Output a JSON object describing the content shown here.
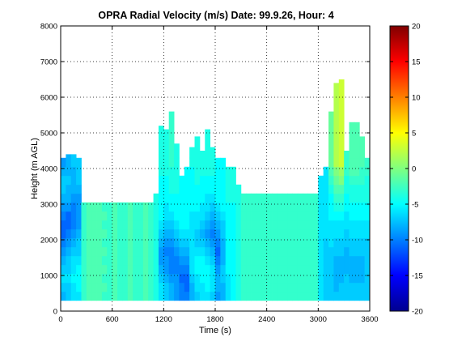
{
  "chart_data": {
    "type": "heatmap",
    "title": "OPRA Radial Velocity (m/s)  Date: 99.9.26, Hour: 4",
    "xlabel": "Time (s)",
    "ylabel": "Height (m AGL)",
    "xlim": [
      0,
      3600
    ],
    "ylim": [
      0,
      8000
    ],
    "xticks": [
      0,
      600,
      1200,
      1800,
      2400,
      3000,
      3600
    ],
    "yticks": [
      0,
      1000,
      2000,
      3000,
      4000,
      5000,
      6000,
      7000,
      8000
    ],
    "grid": true,
    "colorbar": {
      "min": -20,
      "max": 20,
      "ticks": [
        -20,
        -15,
        -10,
        -5,
        0,
        5,
        10,
        15,
        20
      ],
      "colormap": "jet"
    },
    "time_bin_s": 60,
    "height_bin_m": 250,
    "echo_tops_m": [
      4100,
      4400,
      4400,
      4100,
      2700,
      2700,
      2700,
      2700,
      2700,
      2700,
      2700,
      2700,
      2700,
      2700,
      2700,
      2700,
      2700,
      2700,
      3000,
      5200,
      5100,
      5600,
      4700,
      3400,
      3700,
      4600,
      4900,
      4500,
      5100,
      4600,
      3900,
      3700,
      3400,
      3400,
      3300,
      2900,
      2900,
      2900,
      2900,
      2900,
      2900,
      2900,
      2900,
      2900,
      2900,
      2900,
      2900,
      2900,
      2900,
      2900,
      3400,
      3800,
      5600,
      6400,
      6500,
      4500,
      5300,
      5300,
      4900,
      4200
    ],
    "velocity_m_s": [
      [
        -8,
        -7,
        -6,
        -7,
        -8,
        -9,
        -10,
        -11,
        -11,
        -10,
        -9,
        -8,
        -7,
        -7,
        -8,
        -9
      ],
      [
        -7,
        -7,
        -6,
        -7,
        -7,
        -8,
        -9,
        -10,
        -11,
        -11,
        -9,
        -8,
        -8,
        -7,
        -8,
        -8
      ],
      [
        -6,
        -6,
        -5,
        -6,
        -6,
        -7,
        -8,
        -9,
        -10,
        -10,
        -10,
        -9,
        -8,
        -8,
        -8,
        -7
      ],
      [
        -6,
        -5,
        -5,
        -5,
        -6,
        -7,
        -7,
        -8,
        -9,
        -9,
        -9,
        -9,
        -8,
        -7,
        -7,
        -7
      ],
      [
        -3,
        -3,
        -3,
        -3,
        -3,
        -3,
        -3,
        -3,
        -3,
        -3,
        -3,
        null,
        null,
        null,
        null,
        null
      ],
      [
        -2,
        -2,
        -2,
        -2,
        -2,
        -2,
        -2,
        -2,
        -2,
        -2,
        -2,
        null,
        null,
        null,
        null,
        null
      ],
      [
        -2,
        -2,
        -2,
        -2,
        -2,
        -2,
        -2,
        -2,
        -2,
        -2,
        -2,
        null,
        null,
        null,
        null,
        null
      ],
      [
        -2,
        -2,
        -2,
        -2,
        -2,
        -2,
        -2,
        -2,
        -2,
        -2,
        -2,
        null,
        null,
        null,
        null,
        null
      ],
      [
        -3,
        -2,
        -3,
        -2,
        -3,
        -2,
        -3,
        -2,
        -3,
        -2,
        -3,
        null,
        null,
        null,
        null,
        null
      ],
      [
        -3,
        -3,
        -3,
        -3,
        -3,
        -3,
        -3,
        -3,
        -3,
        -3,
        -3,
        null,
        null,
        null,
        null,
        null
      ],
      [
        -2,
        -2,
        -2,
        -2,
        -2,
        -2,
        -2,
        -2,
        -2,
        -2,
        -2,
        null,
        null,
        null,
        null,
        null
      ],
      [
        -3,
        -3,
        -3,
        -3,
        -3,
        -3,
        -3,
        -3,
        -3,
        -3,
        -3,
        null,
        null,
        null,
        null,
        null
      ],
      [
        -3,
        -3,
        -3,
        -3,
        -3,
        -3,
        -3,
        -3,
        -3,
        -3,
        -3,
        null,
        null,
        null,
        null,
        null
      ],
      [
        -2,
        -2,
        -2,
        -2,
        -2,
        -2,
        -2,
        -2,
        -2,
        -2,
        -2,
        null,
        null,
        null,
        null,
        null
      ],
      [
        -3,
        -3,
        -3,
        -3,
        -3,
        -3,
        -3,
        -3,
        -3,
        -3,
        -3,
        null,
        null,
        null,
        null,
        null
      ],
      [
        -3,
        -3,
        -3,
        -3,
        -3,
        -3,
        -3,
        -3,
        -3,
        -3,
        -3,
        null,
        null,
        null,
        null,
        null
      ],
      [
        -2,
        -2,
        -2,
        -2,
        -2,
        -2,
        -2,
        -2,
        -2,
        -2,
        -2,
        null,
        null,
        null,
        null,
        null
      ],
      [
        -3,
        -3,
        -3,
        -3,
        -3,
        -3,
        -3,
        -3,
        -3,
        -3,
        -3,
        null,
        null,
        null,
        null,
        null
      ],
      [
        -4,
        -4,
        -4,
        -4,
        -4,
        -4,
        -4,
        -4,
        -4,
        -4,
        -4,
        -4,
        null,
        null,
        null,
        null
      ],
      [
        -6,
        -6,
        -7,
        -8,
        -9,
        -9,
        -8,
        -7,
        -6,
        -5,
        -5,
        -5,
        -5,
        -5,
        -4,
        -4
      ],
      [
        -7,
        -7,
        -8,
        -9,
        -9,
        -10,
        -9,
        -8,
        -7,
        -6,
        -6,
        -5,
        -5,
        -5,
        -4,
        -4
      ],
      [
        -8,
        -8,
        -9,
        -10,
        -10,
        -10,
        -9,
        -8,
        -7,
        -6,
        -5,
        -5,
        -4,
        -4,
        -4,
        -3
      ],
      [
        -9,
        -9,
        -9,
        -10,
        -10,
        -9,
        -8,
        -7,
        -6,
        -5,
        -5,
        -5,
        -4,
        -4,
        -4,
        -4
      ],
      [
        -10,
        -10,
        -11,
        -10,
        -9,
        -8,
        -7,
        -6,
        -5,
        -5,
        -5,
        -5,
        -5,
        -5,
        null,
        null
      ],
      [
        -10,
        -11,
        -11,
        -10,
        -9,
        -8,
        -7,
        -6,
        -5,
        -5,
        -5,
        -5,
        -5,
        -5,
        -5,
        null
      ],
      [
        -8,
        -8,
        -7,
        -6,
        -6,
        -6,
        -6,
        -6,
        -6,
        -6,
        -5,
        -5,
        -5,
        -5,
        -5,
        -4
      ],
      [
        -7,
        -6,
        -6,
        -5,
        -5,
        -6,
        -7,
        -7,
        -6,
        -6,
        -5,
        -5,
        -5,
        -4,
        -4,
        -4
      ],
      [
        -6,
        -6,
        -5,
        -5,
        -5,
        -6,
        -7,
        -8,
        -7,
        -6,
        -6,
        -5,
        -5,
        -5,
        -4,
        -4
      ],
      [
        -6,
        -5,
        -5,
        -5,
        -6,
        -7,
        -8,
        -9,
        -8,
        -7,
        -6,
        -6,
        -5,
        -5,
        -4,
        -4
      ],
      [
        -7,
        -6,
        -6,
        -6,
        -7,
        -8,
        -9,
        -10,
        -9,
        -8,
        -7,
        -6,
        -5,
        -5,
        -4,
        -4
      ],
      [
        -9,
        -8,
        -8,
        -9,
        -10,
        -11,
        -10,
        -9,
        -8,
        -7,
        -6,
        -5,
        -5,
        -5,
        -5,
        -5
      ],
      [
        -8,
        -8,
        -7,
        -7,
        -8,
        -8,
        -8,
        -7,
        -7,
        -6,
        -5,
        -5,
        -5,
        -5,
        -5,
        -5
      ],
      [
        -6,
        -6,
        -6,
        -5,
        -5,
        -5,
        -5,
        -5,
        -5,
        -5,
        -5,
        -4,
        -4,
        -4,
        -4,
        null
      ],
      [
        -5,
        -5,
        -5,
        -5,
        -5,
        -5,
        -5,
        -5,
        -5,
        -5,
        -5,
        -4,
        -4,
        -4,
        -4,
        null
      ],
      [
        -4,
        -4,
        -4,
        -4,
        -4,
        -4,
        -4,
        -4,
        -4,
        -4,
        -4,
        -4,
        -4,
        null,
        null,
        null
      ],
      [
        -3,
        -3,
        -3,
        -3,
        -3,
        -3,
        -3,
        -3,
        -3,
        -3,
        -3,
        -3,
        null,
        null,
        null,
        null
      ],
      [
        -3,
        -3,
        -3,
        -3,
        -3,
        -3,
        -3,
        -3,
        -3,
        -3,
        -3,
        -3,
        null,
        null,
        null,
        null
      ],
      [
        -3,
        -3,
        -3,
        -3,
        -3,
        -3,
        -3,
        -3,
        -3,
        -3,
        -3,
        -3,
        null,
        null,
        null,
        null
      ],
      [
        -3,
        -3,
        -3,
        -3,
        -3,
        -3,
        -3,
        -3,
        -3,
        -3,
        -3,
        -3,
        null,
        null,
        null,
        null
      ],
      [
        -3,
        -3,
        -3,
        -3,
        -3,
        -3,
        -3,
        -3,
        -3,
        -3,
        -3,
        -3,
        null,
        null,
        null,
        null
      ],
      [
        -3,
        -3,
        -3,
        -3,
        -3,
        -3,
        -3,
        -3,
        -3,
        -3,
        -3,
        -3,
        null,
        null,
        null,
        null
      ],
      [
        -3,
        -3,
        -3,
        -3,
        -3,
        -3,
        -3,
        -3,
        -3,
        -3,
        -3,
        -3,
        null,
        null,
        null,
        null
      ],
      [
        -3,
        -3,
        -3,
        -3,
        -3,
        -3,
        -3,
        -3,
        -3,
        -3,
        -3,
        -3,
        null,
        null,
        null,
        null
      ],
      [
        -3,
        -3,
        -3,
        -3,
        -3,
        -3,
        -3,
        -3,
        -3,
        -3,
        -3,
        -3,
        null,
        null,
        null,
        null
      ],
      [
        -3,
        -3,
        -3,
        -3,
        -3,
        -3,
        -3,
        -3,
        -3,
        -3,
        -3,
        -3,
        null,
        null,
        null,
        null
      ],
      [
        -3,
        -3,
        -3,
        -3,
        -3,
        -3,
        -3,
        -3,
        -3,
        -3,
        -3,
        -3,
        null,
        null,
        null,
        null
      ],
      [
        -3,
        -3,
        -3,
        -3,
        -3,
        -3,
        -3,
        -3,
        -3,
        -3,
        -3,
        -3,
        null,
        null,
        null,
        null
      ],
      [
        -3,
        -3,
        -3,
        -3,
        -3,
        -3,
        -3,
        -3,
        -3,
        -3,
        -3,
        -3,
        null,
        null,
        null,
        null
      ],
      [
        -3,
        -3,
        -3,
        -3,
        -3,
        -3,
        -3,
        -3,
        -3,
        -3,
        -3,
        -3,
        null,
        null,
        null,
        null
      ],
      [
        -3,
        -3,
        -3,
        -3,
        -3,
        -3,
        -3,
        -3,
        -3,
        -3,
        -3,
        -3,
        null,
        null,
        null,
        null
      ],
      [
        -6,
        -6,
        -6,
        -6,
        -6,
        -6,
        -6,
        -6,
        -6,
        -6,
        -6,
        -6,
        -6,
        -6,
        null,
        null
      ],
      [
        -7,
        -7,
        -7,
        -7,
        -7,
        -7,
        -7,
        -6,
        -6,
        -6,
        -6,
        -6,
        -6,
        -6,
        -6,
        null
      ],
      [
        -7,
        -7,
        -7,
        -7,
        -7,
        -7,
        -6,
        -6,
        -6,
        -5,
        -5,
        -5,
        -4,
        -3,
        -2,
        -1
      ],
      [
        -7,
        -8,
        -8,
        -8,
        -8,
        -7,
        -7,
        -6,
        -6,
        -5,
        -4,
        -3,
        -2,
        -1,
        0,
        2
      ],
      [
        -7,
        -7,
        -8,
        -8,
        -8,
        -7,
        -7,
        -6,
        -6,
        -5,
        -4,
        -3,
        -2,
        0,
        1,
        3
      ],
      [
        -7,
        -7,
        -7,
        -8,
        -8,
        -8,
        -7,
        -7,
        -6,
        -6,
        -5,
        -5,
        -4,
        -4,
        -3,
        -3
      ],
      [
        -7,
        -7,
        -8,
        -8,
        -8,
        -7,
        -7,
        -6,
        -6,
        -5,
        -5,
        -4,
        -4,
        -3,
        -2,
        -2
      ],
      [
        -7,
        -7,
        -8,
        -8,
        -8,
        -7,
        -7,
        -6,
        -6,
        -5,
        -5,
        -4,
        -4,
        -3,
        -2,
        -2
      ],
      [
        -7,
        -7,
        -8,
        -8,
        -8,
        -7,
        -7,
        -6,
        -6,
        -5,
        -5,
        -4,
        -4,
        -3,
        -3,
        -2
      ],
      [
        -7,
        -7,
        -7,
        -7,
        -7,
        -7,
        -7,
        -6,
        -6,
        -5,
        -5,
        -4,
        -4,
        -4,
        -3,
        -3
      ]
    ]
  }
}
